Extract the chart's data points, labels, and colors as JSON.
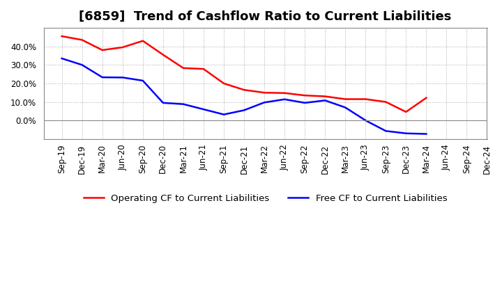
{
  "title": "[6859]  Trend of Cashflow Ratio to Current Liabilities",
  "x_labels": [
    "Sep-19",
    "Dec-19",
    "Mar-20",
    "Jun-20",
    "Sep-20",
    "Dec-20",
    "Mar-21",
    "Jun-21",
    "Sep-21",
    "Dec-21",
    "Mar-22",
    "Jun-22",
    "Sep-22",
    "Dec-22",
    "Mar-23",
    "Jun-23",
    "Sep-23",
    "Dec-23",
    "Mar-24",
    "Jun-24",
    "Sep-24",
    "Dec-24"
  ],
  "operating_cf": [
    0.455,
    0.435,
    0.38,
    0.395,
    0.43,
    0.355,
    0.283,
    0.278,
    0.2,
    0.165,
    0.15,
    0.148,
    0.135,
    0.13,
    0.115,
    0.115,
    0.1,
    0.046,
    0.122,
    null,
    null,
    null
  ],
  "free_cf": [
    0.335,
    0.3,
    0.233,
    0.232,
    0.215,
    0.095,
    0.088,
    0.06,
    0.032,
    0.055,
    0.097,
    0.114,
    0.095,
    0.108,
    0.07,
    0.0,
    -0.057,
    -0.07,
    -0.073,
    null,
    null,
    null
  ],
  "ylim": [
    -0.1,
    0.5
  ],
  "yticks": [
    0.0,
    0.1,
    0.2,
    0.3,
    0.4
  ],
  "operating_color": "#FF0000",
  "free_color": "#0000FF",
  "background_color": "#FFFFFF",
  "grid_color": "#AAAAAA",
  "zero_line_color": "#888888",
  "legend_operating": "Operating CF to Current Liabilities",
  "legend_free": "Free CF to Current Liabilities",
  "title_fontsize": 13,
  "axis_fontsize": 8.5,
  "legend_fontsize": 9.5,
  "line_width": 1.8
}
